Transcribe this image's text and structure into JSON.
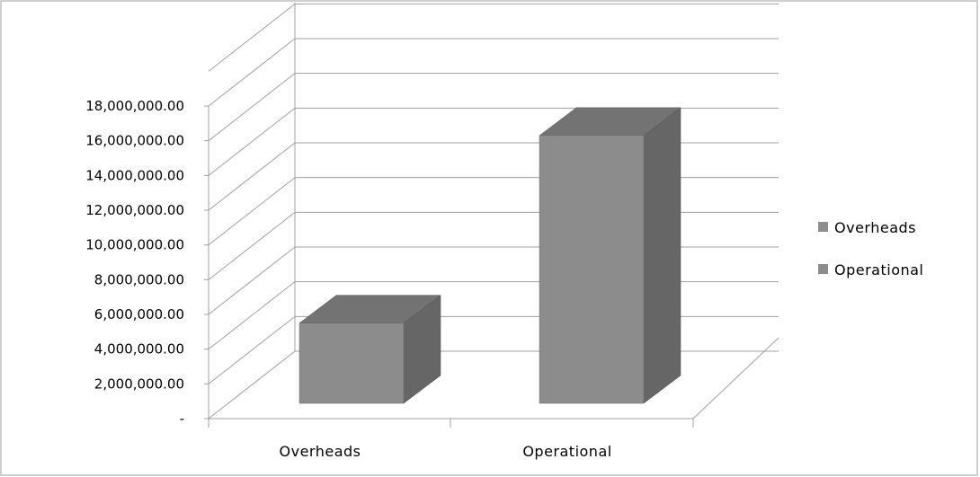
{
  "chart_data": {
    "type": "bar",
    "categories": [
      "Overheads",
      "Operational"
    ],
    "values": [
      5500000,
      16300000
    ],
    "y_ticks": [
      "-",
      "2,000,000.00",
      "4,000,000.00",
      "6,000,000.00",
      "8,000,000.00",
      "10,000,000.00",
      "12,000,000.00",
      "14,000,000.00",
      "16,000,000.00",
      "18,000,000.00"
    ],
    "ylim": [
      0,
      18000000
    ],
    "grid": true,
    "legend": {
      "placement": "right",
      "entries": [
        "Overheads",
        "Operational"
      ]
    },
    "style": "3d-column",
    "colors": {
      "bar_front": "#8c8c8c",
      "bar_top": "#737373",
      "bar_side": "#666666",
      "legend_swatch": "#8c8c8c",
      "grid": "#a0a0a0",
      "frame": "#bfbfbf"
    }
  }
}
